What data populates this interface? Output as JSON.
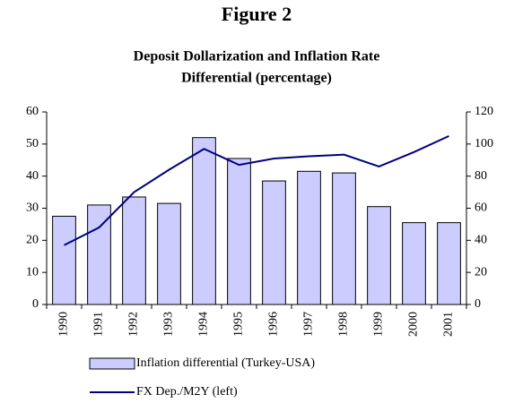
{
  "chart_data": {
    "type": "bar_line",
    "title": "Figure 2",
    "subtitle": [
      "Deposit Dollarization and Inflation Rate",
      "Differential (percentage)"
    ],
    "categories": [
      "1990",
      "1991",
      "1992",
      "1993",
      "1994",
      "1995",
      "1996",
      "1997",
      "1998",
      "1999",
      "2000",
      "2001"
    ],
    "series": [
      {
        "name": "Inflation differential (Turkey-USA)",
        "type": "bar",
        "axis": "y2",
        "color": "#ccccff",
        "values": [
          55,
          62,
          67,
          63,
          104,
          91,
          77,
          83,
          82,
          61,
          51,
          51
        ]
      },
      {
        "name": "FX Dep./M2Y (left)",
        "type": "line",
        "axis": "y",
        "color": "#000080",
        "values": [
          18.5,
          24,
          35,
          42,
          48.5,
          43.5,
          45.5,
          46.2,
          46.7,
          43,
          47.5,
          52.5
        ]
      }
    ],
    "ylim": [
      0,
      60
    ],
    "yticks": [
      0,
      10,
      20,
      30,
      40,
      50,
      60
    ],
    "y2lim": [
      0,
      120
    ],
    "y2ticks": [
      0,
      20,
      40,
      60,
      80,
      100,
      120
    ]
  }
}
